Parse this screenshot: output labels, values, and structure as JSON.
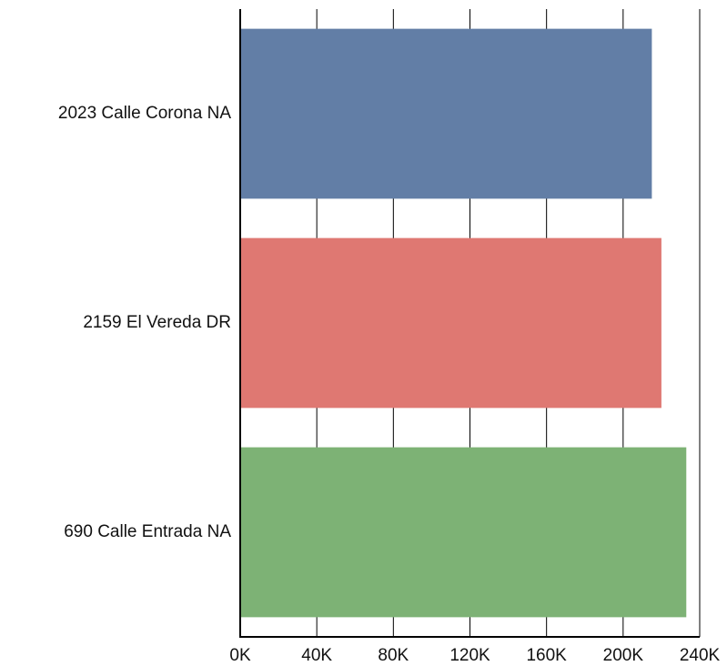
{
  "chart_data": {
    "type": "bar",
    "orientation": "horizontal",
    "categories": [
      "2023 Calle Corona NA",
      "2159 El Vereda DR",
      "690 Calle Entrada NA"
    ],
    "values": [
      215000,
      220000,
      233000
    ],
    "colors": [
      "#627ea6",
      "#df7872",
      "#7db275"
    ],
    "xlim": [
      0,
      240000
    ],
    "xticks": [
      0,
      40000,
      80000,
      120000,
      160000,
      200000,
      240000
    ],
    "xtick_labels": [
      "0K",
      "40K",
      "80K",
      "120K",
      "160K",
      "200K",
      "240K"
    ],
    "title": "",
    "xlabel": "",
    "ylabel": "",
    "grid": "vertical",
    "legend": "none"
  }
}
